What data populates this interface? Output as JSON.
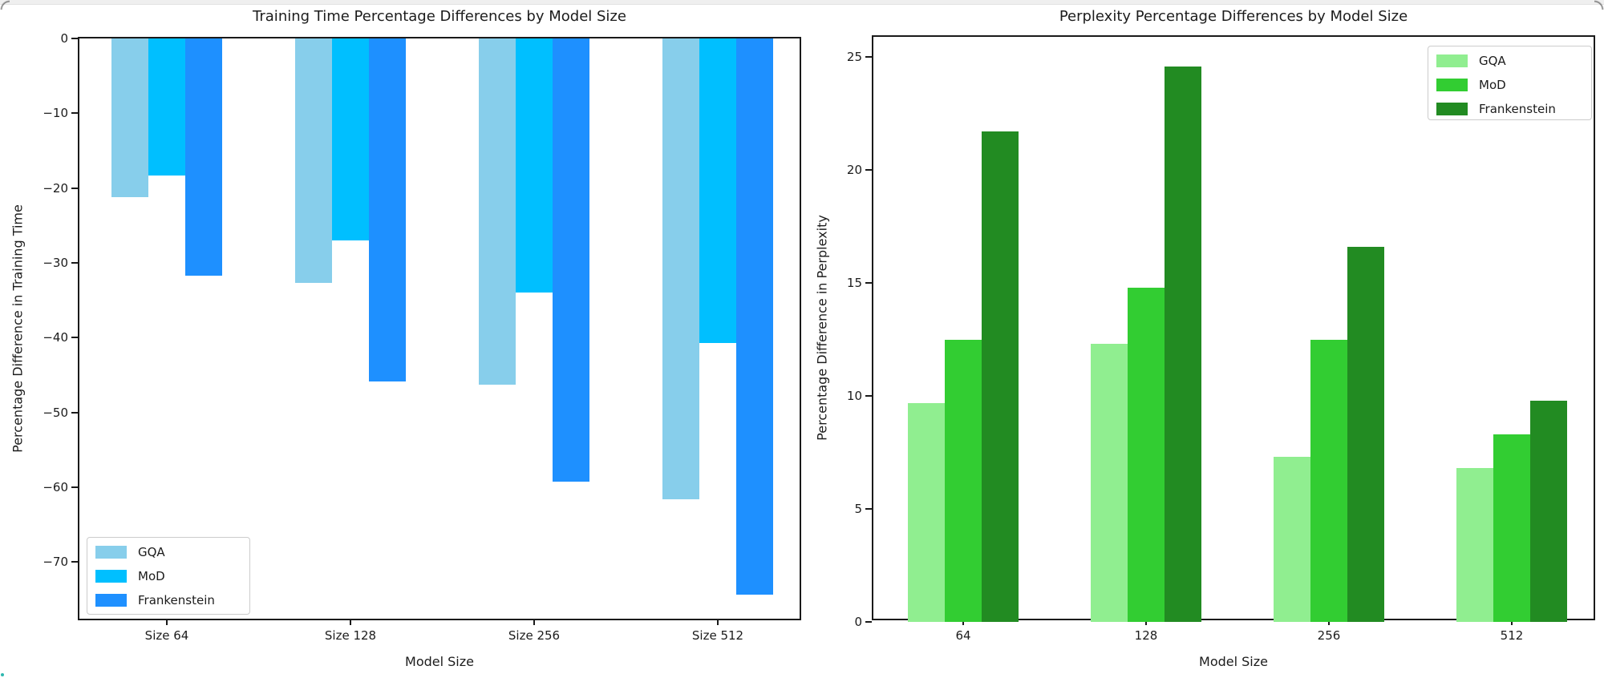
{
  "figure": {
    "background": "#ffffff",
    "text_color": "#1c1c1c"
  },
  "chart_data": [
    {
      "type": "bar",
      "title": "Training Time Percentage Differences by Model Size",
      "xlabel": "Model Size",
      "ylabel": "Percentage Difference in Training Time",
      "categories": [
        "Size 64",
        "Size 128",
        "Size 256",
        "Size 512"
      ],
      "series": [
        {
          "name": "GQA",
          "color": "#87CEEB",
          "values": [
            -21.2,
            -32.7,
            -46.3,
            -61.6
          ]
        },
        {
          "name": "MoD",
          "color": "#00BFFF",
          "values": [
            -18.3,
            -27.0,
            -34.0,
            -40.7
          ]
        },
        {
          "name": "Frankenstein",
          "color": "#1E90FF",
          "values": [
            -31.7,
            -45.9,
            -59.2,
            -74.4
          ]
        }
      ],
      "ylim": [
        -78,
        0
      ],
      "yticks": [
        0,
        -10,
        -20,
        -30,
        -40,
        -50,
        -60,
        -70
      ],
      "legend_position": "lower left",
      "grid": false
    },
    {
      "type": "bar",
      "title": "Perplexity Percentage Differences by Model Size",
      "xlabel": "Model Size",
      "ylabel": "Percentage Difference in Perplexity",
      "categories": [
        "64",
        "128",
        "256",
        "512"
      ],
      "series": [
        {
          "name": "GQA",
          "color": "#90EE90",
          "values": [
            9.7,
            12.3,
            7.3,
            6.8
          ]
        },
        {
          "name": "MoD",
          "color": "#32CD32",
          "values": [
            12.5,
            14.8,
            12.5,
            8.3
          ]
        },
        {
          "name": "Frankenstein",
          "color": "#228B22",
          "values": [
            21.7,
            24.6,
            16.6,
            9.8
          ]
        }
      ],
      "ylim": [
        0,
        25.9
      ],
      "yticks": [
        0,
        5,
        10,
        15,
        20,
        25
      ],
      "legend_position": "upper right",
      "grid": false
    }
  ]
}
